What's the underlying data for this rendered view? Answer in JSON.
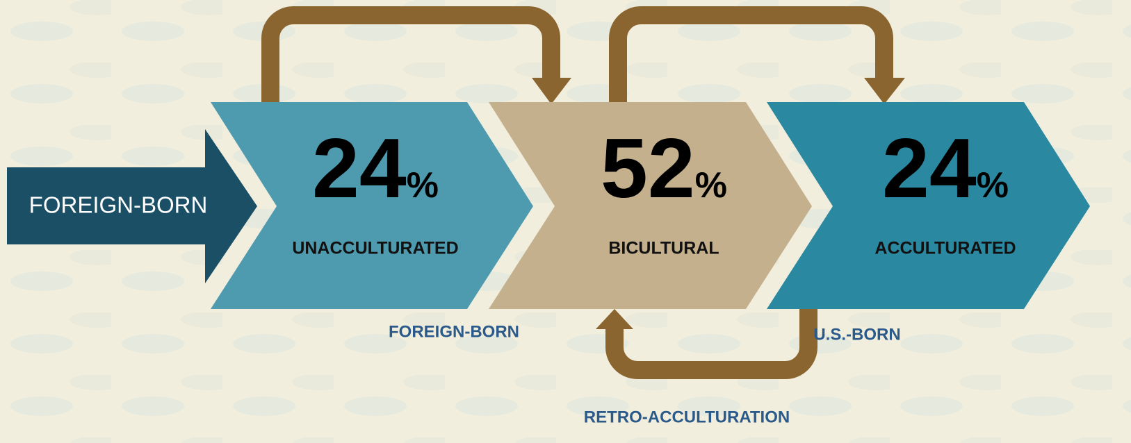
{
  "source": {
    "label": "FOREIGN-BORN"
  },
  "stages": [
    {
      "value": 24,
      "unit": "%",
      "label": "UNACCULTURATED"
    },
    {
      "value": 52,
      "unit": "%",
      "label": "BICULTURAL"
    },
    {
      "value": 24,
      "unit": "%",
      "label": "ACCULTURATED"
    }
  ],
  "notes": {
    "foreign_born": "FOREIGN-BORN",
    "us_born": "U.S.-BORN",
    "retro": "RETRO-ACCULTURATION"
  }
}
